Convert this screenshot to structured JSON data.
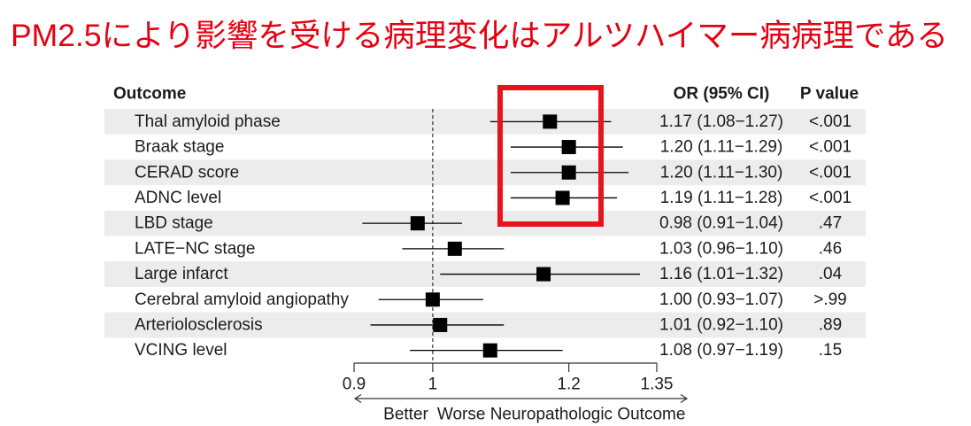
{
  "slide": {
    "title": "PM2.5により影響を受ける病理変化はアルツハイマー病病理である"
  },
  "chart_data": {
    "type": "scatter",
    "columns": {
      "outcome": "Outcome",
      "or_ci": "OR (95% CI)",
      "p_value": "P value"
    },
    "rows": [
      {
        "outcome": "Thal amyloid phase",
        "or": 1.17,
        "ci_low": 1.08,
        "ci_high": 1.27,
        "or_ci": "1.17 (1.08−1.27)",
        "p": "<.001"
      },
      {
        "outcome": "Braak stage",
        "or": 1.2,
        "ci_low": 1.11,
        "ci_high": 1.29,
        "or_ci": "1.20 (1.11−1.29)",
        "p": "<.001"
      },
      {
        "outcome": "CERAD score",
        "or": 1.2,
        "ci_low": 1.11,
        "ci_high": 1.3,
        "or_ci": "1.20 (1.11−1.30)",
        "p": "<.001"
      },
      {
        "outcome": "ADNC level",
        "or": 1.19,
        "ci_low": 1.11,
        "ci_high": 1.28,
        "or_ci": "1.19 (1.11−1.28)",
        "p": "<.001"
      },
      {
        "outcome": "LBD stage",
        "or": 0.98,
        "ci_low": 0.91,
        "ci_high": 1.04,
        "or_ci": "0.98 (0.91−1.04)",
        "p": ".47"
      },
      {
        "outcome": "LATE−NC stage",
        "or": 1.03,
        "ci_low": 0.96,
        "ci_high": 1.1,
        "or_ci": "1.03 (0.96−1.10)",
        "p": ".46"
      },
      {
        "outcome": "Large infarct",
        "or": 1.16,
        "ci_low": 1.01,
        "ci_high": 1.32,
        "or_ci": "1.16 (1.01−1.32)",
        "p": ".04"
      },
      {
        "outcome": "Cerebral amyloid angiopathy",
        "or": 1.0,
        "ci_low": 0.93,
        "ci_high": 1.07,
        "or_ci": "1.00 (0.93−1.07)",
        "p": ">.99"
      },
      {
        "outcome": "Arteriolosclerosis",
        "or": 1.01,
        "ci_low": 0.92,
        "ci_high": 1.1,
        "or_ci": "1.01 (0.92−1.10)",
        "p": ".89"
      },
      {
        "outcome": "VCING level",
        "or": 1.08,
        "ci_low": 0.97,
        "ci_high": 1.19,
        "or_ci": "1.08 (0.97−1.19)",
        "p": ".15"
      }
    ],
    "x_scale": "log",
    "xlim": [
      0.9,
      1.35
    ],
    "x_ticks": [
      0.9,
      1,
      1.2,
      1.35
    ],
    "x_tick_labels": [
      "0.9",
      "1",
      "1.2",
      "1.35"
    ],
    "reference_line": 1,
    "direction_labels": {
      "left": "Better",
      "right": "Worse Neuropathologic Outcome"
    },
    "grid": false
  },
  "colors": {
    "title": "#e50012",
    "highlight_box": "#e8141c",
    "row_band": "#ececec",
    "marker": "#000000",
    "axis": "#333333",
    "text": "#1c1c1c"
  }
}
